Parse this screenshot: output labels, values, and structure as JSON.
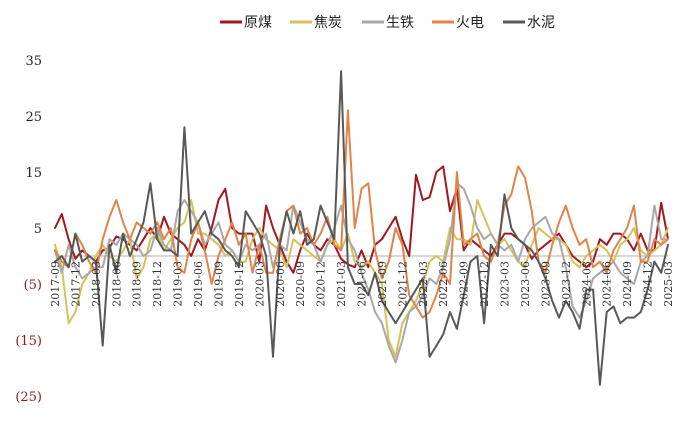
{
  "chart_data": {
    "type": "line",
    "title": "",
    "xlabel": "",
    "ylabel": "",
    "ylim": [
      -25,
      35
    ],
    "yticks": [
      {
        "value": 35,
        "label": "35"
      },
      {
        "value": 25,
        "label": "25"
      },
      {
        "value": 15,
        "label": "15"
      },
      {
        "value": 5,
        "label": "5"
      },
      {
        "value": -5,
        "label": "(5)"
      },
      {
        "value": -15,
        "label": "(15)"
      },
      {
        "value": -25,
        "label": "(25)"
      }
    ],
    "negative_tick_color": "#8b1a1a",
    "positive_tick_color": "#222222",
    "legend_position": "top",
    "grid": false,
    "x": [
      "2017-09",
      "2017-10",
      "2017-11",
      "2017-12",
      "2018-01",
      "2018-02",
      "2018-03",
      "2018-04",
      "2018-05",
      "2018-06",
      "2018-07",
      "2018-08",
      "2018-09",
      "2018-10",
      "2018-11",
      "2018-12",
      "2019-01",
      "2019-02",
      "2019-03",
      "2019-04",
      "2019-05",
      "2019-06",
      "2019-07",
      "2019-08",
      "2019-09",
      "2019-10",
      "2019-11",
      "2019-12",
      "2020-01",
      "2020-02",
      "2020-03",
      "2020-04",
      "2020-05",
      "2020-06",
      "2020-07",
      "2020-08",
      "2020-09",
      "2020-10",
      "2020-11",
      "2020-12",
      "2021-01",
      "2021-02",
      "2021-03",
      "2021-04",
      "2021-05",
      "2021-06",
      "2021-07",
      "2021-08",
      "2021-09",
      "2021-10",
      "2021-11",
      "2021-12",
      "2022-01",
      "2022-02",
      "2022-03",
      "2022-04",
      "2022-05",
      "2022-06",
      "2022-07",
      "2022-08",
      "2022-09",
      "2022-10",
      "2022-11",
      "2022-12",
      "2023-01",
      "2023-02",
      "2023-03",
      "2023-04",
      "2023-05",
      "2023-06",
      "2023-07",
      "2023-08",
      "2023-09",
      "2023-10",
      "2023-11",
      "2023-12",
      "2024-01",
      "2024-02",
      "2024-03",
      "2024-04",
      "2024-05",
      "2024-06",
      "2024-07",
      "2024-08",
      "2024-09",
      "2024-10",
      "2024-11",
      "2024-12",
      "2025-01",
      "2025-02",
      "2025-03"
    ],
    "xtick_labels": [
      "2017-09",
      "2017-12",
      "2018-03",
      "2018-06",
      "2018-09",
      "2018-12",
      "2019-03",
      "2019-06",
      "2019-09",
      "2019-12",
      "2020-03",
      "2020-06",
      "2020-09",
      "2020-12",
      "2021-03",
      "2021-06",
      "2021-09",
      "2021-12",
      "2022-03",
      "2022-06",
      "2022-09",
      "2022-12",
      "2023-03",
      "2023-06",
      "2023-09",
      "2023-12",
      "2024-03",
      "2024-06",
      "2024-09",
      "2024-12",
      "2025-03"
    ],
    "series": [
      {
        "name": "原煤",
        "color": "#a01820",
        "values": [
          5,
          7.5,
          3,
          -0.5,
          1,
          0,
          -1,
          1,
          1.5,
          3.5,
          3,
          2,
          1,
          3,
          5,
          3,
          7,
          4,
          3,
          2,
          0,
          3,
          1,
          5,
          10,
          12,
          5,
          4,
          4,
          4,
          -1,
          9,
          5,
          2,
          -1,
          -3,
          1,
          4,
          2,
          1,
          3,
          2,
          -0.5,
          -1.5,
          -2,
          1,
          -2,
          2,
          3,
          5,
          7,
          3,
          0,
          14.5,
          10,
          10.5,
          15,
          16,
          8,
          12,
          1,
          3,
          2,
          1,
          0,
          2,
          4,
          4,
          3,
          2,
          -0.5,
          1,
          2,
          3,
          4,
          2,
          0,
          -1,
          -2,
          -1,
          3,
          2,
          4,
          4,
          3,
          1,
          4,
          1,
          1,
          9.5,
          3
        ]
      },
      {
        "name": "焦炭",
        "color": "#d4c25a",
        "values": [
          2,
          -2,
          -12,
          -10,
          -5,
          -3,
          0,
          2,
          0,
          -1,
          1,
          3,
          -4,
          -2,
          3,
          4,
          1,
          3,
          5,
          6,
          10,
          4,
          4,
          3,
          2,
          0,
          1,
          -1,
          -1,
          3,
          5,
          3,
          2,
          1,
          -2,
          3,
          2,
          1,
          0,
          -1,
          2,
          3,
          1,
          4,
          -1,
          -2,
          -1,
          -3,
          -5,
          -15,
          -18,
          -12,
          -10,
          -8,
          -5,
          -1,
          0,
          -1,
          5,
          3,
          3,
          2,
          10,
          7,
          4,
          2,
          3,
          1,
          -1,
          -2,
          2,
          5,
          4,
          3,
          3,
          2,
          -1,
          -2,
          0,
          1,
          2,
          1,
          -1,
          2,
          3,
          5,
          1,
          0,
          1,
          2,
          5
        ]
      },
      {
        "name": "生铁",
        "color": "#a8a8a8",
        "values": [
          1,
          -3,
          2,
          -2,
          -4,
          -3,
          -2,
          -2,
          3,
          2,
          4,
          3,
          2,
          0,
          1,
          5,
          2,
          1,
          8,
          10,
          8,
          6,
          2,
          4,
          6,
          2,
          1,
          -1,
          2,
          1,
          2,
          4,
          -2,
          2,
          1,
          9,
          6,
          3,
          2,
          -1,
          2,
          5,
          9,
          3,
          1,
          -3,
          -6,
          -10,
          -12,
          -16,
          -19,
          -15,
          -10,
          -9,
          -7,
          -4,
          -5,
          -2,
          3,
          13,
          12,
          9,
          5,
          3,
          4,
          2,
          1,
          2,
          -1,
          3,
          5,
          6,
          7,
          4,
          3,
          -2,
          -9,
          -11,
          -8,
          -4,
          -3,
          -2,
          -1,
          -3,
          -4,
          -5,
          -1,
          0,
          9,
          3,
          3
        ]
      },
      {
        "name": "火电",
        "color": "#e0844a",
        "values": [
          1,
          -1,
          -2,
          4,
          2,
          -1,
          -3,
          3,
          7,
          10,
          6,
          3,
          6,
          5,
          4,
          6,
          3,
          5,
          -2,
          -3,
          3,
          6,
          1,
          -5,
          0,
          3,
          6,
          2,
          4,
          -3,
          2,
          -3,
          -3,
          3,
          8,
          9,
          4,
          5,
          2,
          4,
          7,
          2,
          1,
          26,
          5,
          12,
          13,
          1,
          -4,
          -1,
          5,
          2,
          -7,
          -9,
          -11,
          -10,
          -7,
          -3,
          -5,
          15,
          2,
          3,
          4,
          0,
          -1,
          2,
          9,
          11,
          16,
          14,
          8,
          -1,
          -3,
          2,
          6,
          9,
          5,
          2,
          3,
          -2,
          -1,
          -3,
          1,
          3,
          5,
          9,
          -1,
          -1,
          3,
          2,
          3
        ]
      },
      {
        "name": "水泥",
        "color": "#585858",
        "values": [
          -1,
          0,
          -2,
          4,
          -1,
          0,
          -1,
          -16,
          2,
          -3,
          4,
          0,
          3,
          6,
          13,
          3,
          1,
          1,
          0,
          23,
          4,
          6,
          8,
          4,
          3,
          1,
          0,
          -2,
          8,
          6,
          4,
          0,
          -18,
          2,
          8,
          4,
          8,
          2,
          3,
          9,
          6,
          3,
          33,
          -2,
          -5,
          -5,
          -7,
          -3,
          -8,
          -10,
          -12,
          -10,
          -8,
          -6,
          -4,
          -18,
          -16,
          -14,
          -10,
          -13,
          -7,
          -1,
          0,
          -12,
          2,
          0,
          11,
          5,
          3,
          2,
          1,
          -1,
          -4,
          -8,
          -11,
          -8,
          -10,
          -13,
          -6,
          -6,
          -23,
          -10,
          -9,
          -12,
          -11,
          -11,
          -10,
          -6,
          -1,
          -3,
          2
        ]
      }
    ]
  }
}
